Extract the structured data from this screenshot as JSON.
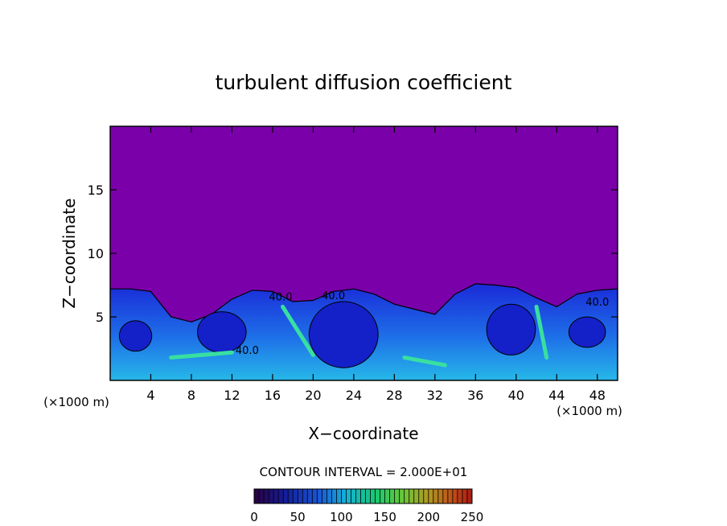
{
  "chart_data": {
    "type": "heatmap",
    "title": "turbulent diffusion coefficient",
    "xlabel": "X−coordinate",
    "ylabel": "Z−coordinate",
    "x_unit_left": "(×1000 m)",
    "x_unit_right": "(×1000 m)",
    "xlim": [
      0,
      50
    ],
    "ylim": [
      0,
      20
    ],
    "x_ticks": [
      4,
      8,
      12,
      16,
      20,
      24,
      28,
      32,
      36,
      40,
      44,
      48
    ],
    "y_ticks": [
      5,
      10,
      15
    ],
    "contour_interval_text": "CONTOUR INTERVAL = 2.000E+01",
    "contour_labels": [
      "40.0",
      "40.0",
      "40.0",
      "40.0"
    ],
    "colorbar": {
      "min": 0,
      "max": 250,
      "ticks": [
        0,
        50,
        100,
        150,
        200,
        250
      ]
    },
    "background_color": "#7a00aa",
    "turbulent_layer_top_profile": {
      "x": [
        0,
        2,
        4,
        6,
        8,
        10,
        12,
        14,
        16,
        18,
        20,
        22,
        24,
        26,
        28,
        30,
        32,
        34,
        36,
        38,
        40,
        42,
        44,
        46,
        48,
        50
      ],
      "z": [
        7.2,
        7.2,
        7.0,
        5.0,
        4.6,
        5.2,
        6.4,
        7.1,
        7.0,
        6.2,
        6.3,
        7.0,
        7.2,
        6.8,
        6.0,
        5.6,
        5.2,
        6.8,
        7.6,
        7.5,
        7.3,
        6.5,
        5.8,
        6.8,
        7.1,
        7.2
      ]
    }
  }
}
